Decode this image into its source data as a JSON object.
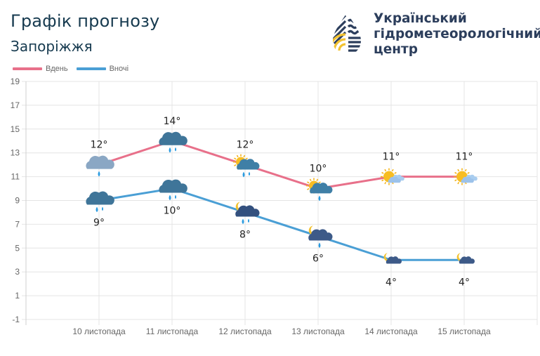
{
  "header": {
    "title": "Графік прогнозу",
    "city": "Запоріжжя"
  },
  "logo": {
    "icon": "water-drop-logo-icon",
    "line1": "Український",
    "line2": "гідрометеорологічний",
    "line3": "центр",
    "colors": {
      "navy": "#2c3e5c",
      "yellow": "#f2c230"
    }
  },
  "chart_data": {
    "type": "line",
    "title": "Графік прогнозу",
    "subtitle": "Запоріжжя",
    "xlabel": "",
    "ylabel": "",
    "categories": [
      "10 листопада",
      "11 листопада",
      "12 листопада",
      "13 листопада",
      "14 листопада",
      "15 листопада"
    ],
    "ylim": [
      -1,
      19
    ],
    "yticks": [
      19,
      17,
      15,
      13,
      11,
      9,
      7,
      5,
      3,
      1,
      -1
    ],
    "grid": true,
    "legend_position": "top-left",
    "series": [
      {
        "name": "Вдень",
        "color": "#e8708a",
        "values": [
          12,
          14,
          12,
          10,
          11,
          11
        ],
        "labels": [
          "12°",
          "14°",
          "12°",
          "10°",
          "11°",
          "11°"
        ],
        "label_position": "above",
        "icons": [
          "cloud-rain-light-icon",
          "cloud-rain-icon",
          "sun-cloud-rain-icon",
          "sun-cloud-rain-light-icon",
          "sun-small-cloud-icon",
          "sun-small-cloud-icon"
        ]
      },
      {
        "name": "Вночі",
        "color": "#4a9fd5",
        "values": [
          9,
          10,
          8,
          6,
          4,
          4
        ],
        "labels": [
          "9°",
          "10°",
          "8°",
          "6°",
          "4°",
          "4°"
        ],
        "label_position": "below",
        "icons": [
          "cloud-rain-icon",
          "cloud-rain-icon",
          "moon-cloud-rain-icon",
          "moon-cloud-rain-light-icon",
          "moon-cloud-icon",
          "moon-cloud-icon"
        ]
      }
    ]
  }
}
